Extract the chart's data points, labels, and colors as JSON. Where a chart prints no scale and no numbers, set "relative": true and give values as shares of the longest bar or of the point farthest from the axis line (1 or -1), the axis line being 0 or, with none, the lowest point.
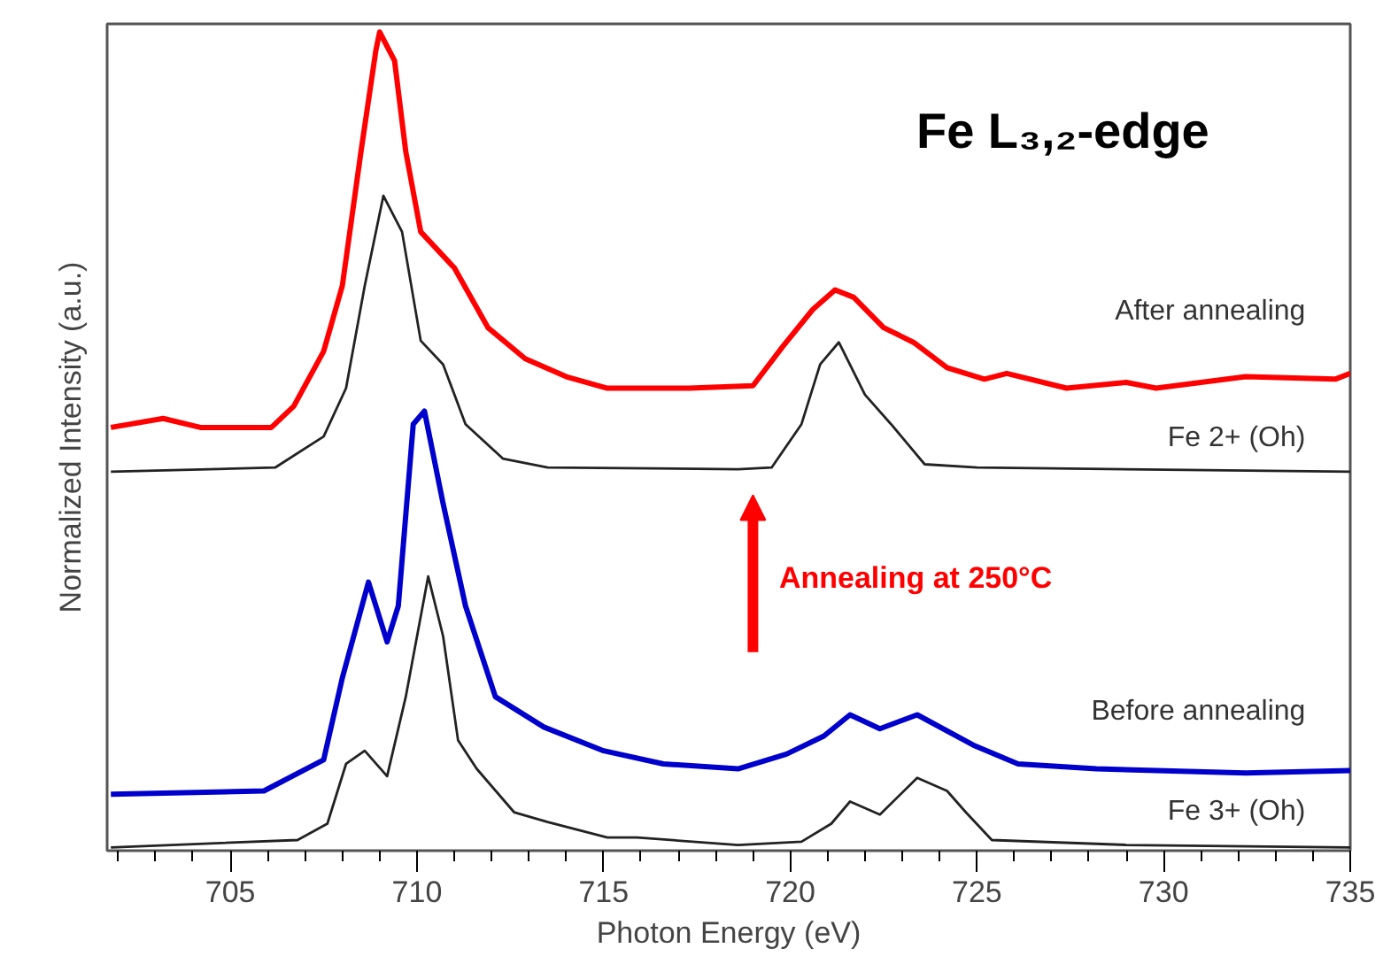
{
  "chart_data": {
    "type": "line",
    "relative": true,
    "xlabel": "Photon Energy (eV)",
    "ylabel": "Normalized Intensity (a.u.)",
    "xlim": [
      701.7,
      735
    ],
    "xticks": [
      705,
      710,
      715,
      720,
      725,
      730,
      735
    ],
    "grid": false,
    "marker": "none",
    "line_style": "solid",
    "annotations": [
      "Fe L₃,₂-edge",
      "Annealing at 250°C"
    ],
    "series": [
      {
        "name": "After annealing",
        "color": "#ff0000",
        "x": [
          701.8,
          703.2,
          704.2,
          706.1,
          706.7,
          707.5,
          708.0,
          708.5,
          708.9,
          709.0,
          709.4,
          709.7,
          710.1,
          711.0,
          711.9,
          712.9,
          714.0,
          715.1,
          717.3,
          719.0,
          719.8,
          720.6,
          721.2,
          721.7,
          722.5,
          723.3,
          724.2,
          725.2,
          725.8,
          727.4,
          729.0,
          729.8,
          732.2,
          734.6,
          735.0
        ],
        "values": [
          0.517,
          0.528,
          0.517,
          0.517,
          0.543,
          0.61,
          0.69,
          0.854,
          0.978,
          1.0,
          0.965,
          0.854,
          0.756,
          0.712,
          0.639,
          0.601,
          0.579,
          0.565,
          0.565,
          0.568,
          0.616,
          0.661,
          0.685,
          0.676,
          0.639,
          0.621,
          0.59,
          0.576,
          0.583,
          0.565,
          0.572,
          0.565,
          0.579,
          0.576,
          0.583
        ]
      },
      {
        "name": "Fe 2+ (Oh)",
        "color": "#222222",
        "x": [
          701.8,
          706.2,
          707.5,
          708.1,
          708.6,
          709.1,
          709.6,
          710.1,
          710.7,
          711.3,
          712.3,
          713.5,
          718.6,
          719.5,
          720.3,
          720.8,
          721.3,
          722.0,
          722.7,
          723.6,
          725.0,
          735.0
        ],
        "values": [
          0.463,
          0.468,
          0.506,
          0.565,
          0.69,
          0.8,
          0.756,
          0.623,
          0.594,
          0.521,
          0.479,
          0.468,
          0.466,
          0.468,
          0.521,
          0.594,
          0.621,
          0.557,
          0.521,
          0.472,
          0.468,
          0.463
        ]
      },
      {
        "name": "Before annealing",
        "color": "#0000cc",
        "x": [
          701.8,
          705.9,
          707.5,
          708.0,
          708.7,
          709.2,
          709.5,
          709.9,
          710.2,
          710.7,
          711.3,
          712.1,
          713.4,
          715.0,
          716.6,
          718.6,
          719.9,
          720.9,
          721.6,
          722.4,
          723.4,
          724.9,
          726.1,
          728.2,
          732.2,
          735.0
        ],
        "values": [
          0.069,
          0.073,
          0.111,
          0.211,
          0.328,
          0.255,
          0.299,
          0.521,
          0.537,
          0.424,
          0.299,
          0.188,
          0.151,
          0.122,
          0.106,
          0.1,
          0.118,
          0.14,
          0.166,
          0.149,
          0.166,
          0.129,
          0.106,
          0.1,
          0.095,
          0.098
        ]
      },
      {
        "name": "Fe 3+ (Oh)",
        "color": "#222222",
        "x": [
          701.8,
          706.8,
          707.6,
          708.1,
          708.6,
          709.2,
          709.7,
          710.3,
          710.7,
          711.1,
          711.6,
          712.6,
          713.5,
          715.1,
          715.9,
          718.6,
          720.3,
          721.1,
          721.6,
          722.4,
          723.4,
          724.2,
          724.7,
          725.4,
          729.0,
          735.0
        ],
        "values": [
          0.004,
          0.013,
          0.033,
          0.106,
          0.122,
          0.091,
          0.188,
          0.335,
          0.262,
          0.135,
          0.1,
          0.047,
          0.035,
          0.016,
          0.016,
          0.007,
          0.011,
          0.033,
          0.06,
          0.044,
          0.089,
          0.073,
          0.047,
          0.013,
          0.007,
          0.004
        ]
      }
    ]
  }
}
